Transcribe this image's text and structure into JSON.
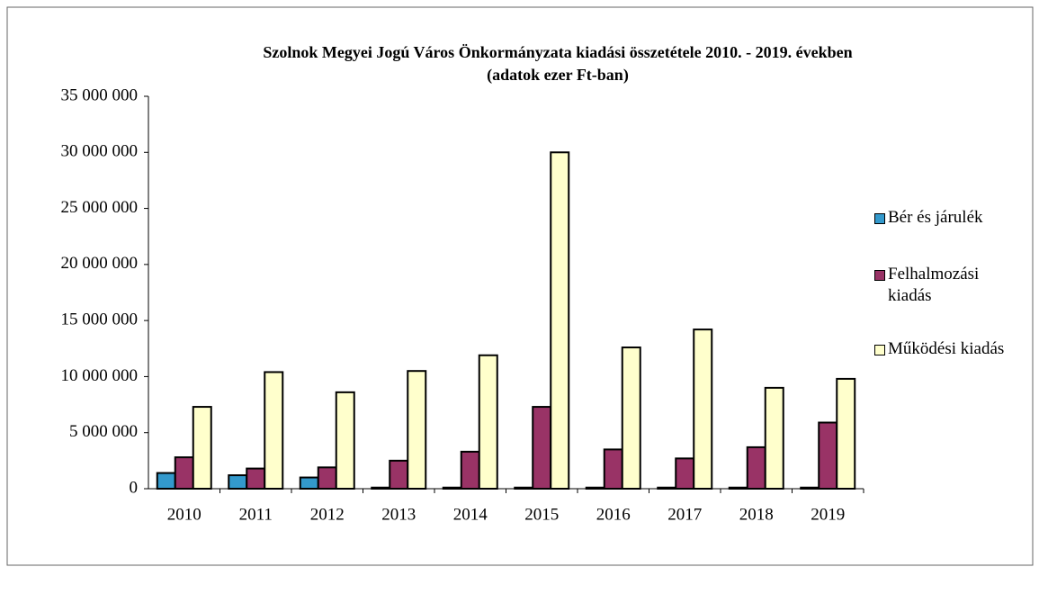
{
  "chart_data": {
    "type": "bar",
    "title": "Szolnok Megyei Jogú Város Önkormányzata kiadási összetétele 2010. - 2019. években",
    "subtitle": "(adatok ezer Ft-ban)",
    "categories": [
      "2010",
      "2011",
      "2012",
      "2013",
      "2014",
      "2015",
      "2016",
      "2017",
      "2018",
      "2019"
    ],
    "series": [
      {
        "name": "Bér és járulék",
        "color": "#3399cc",
        "values": [
          1400000,
          1200000,
          1000000,
          100000,
          100000,
          100000,
          100000,
          100000,
          100000,
          100000
        ]
      },
      {
        "name": "Felhalmozási kiadás",
        "color": "#993366",
        "values": [
          2800000,
          1800000,
          1900000,
          2500000,
          3300000,
          7300000,
          3500000,
          2700000,
          3700000,
          5900000
        ]
      },
      {
        "name": "Működési kiadás",
        "color": "#ffffcc",
        "values": [
          7300000,
          10400000,
          8600000,
          10500000,
          11900000,
          30000000,
          12600000,
          14200000,
          9000000,
          9800000
        ]
      }
    ],
    "ylim": [
      0,
      35000000
    ],
    "yticks": [
      0,
      {
        "value": 5000000,
        "label": "5 000 000"
      },
      {
        "value": 10000000,
        "label": "10 000 000"
      },
      {
        "value": 15000000,
        "label": "15 000 000"
      },
      {
        "value": 20000000,
        "label": "20 000 000"
      },
      {
        "value": 25000000,
        "label": "25 000 000"
      },
      {
        "value": 30000000,
        "label": "30 000 000"
      },
      {
        "value": 35000000,
        "label": "35 000 000"
      }
    ],
    "grid": false,
    "legend": "right"
  }
}
